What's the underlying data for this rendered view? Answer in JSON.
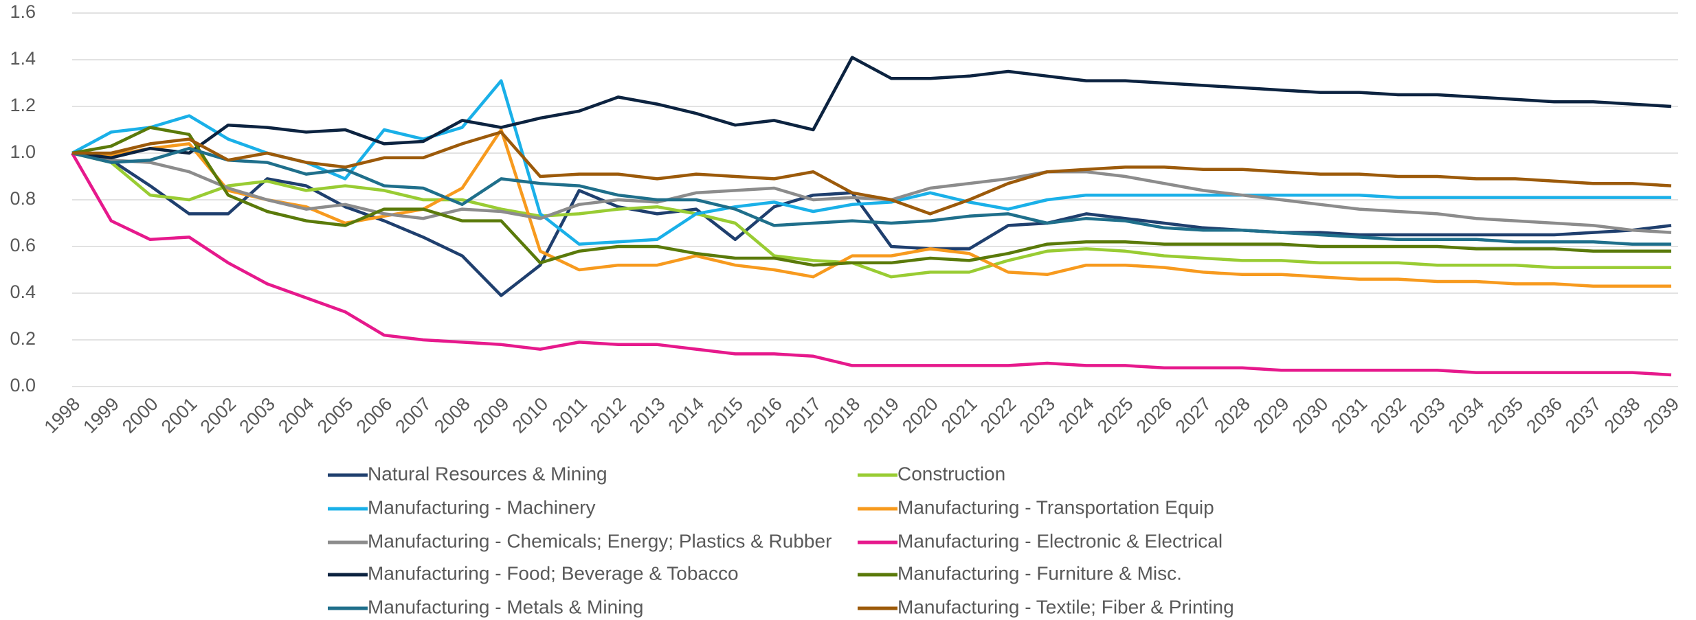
{
  "chart_data": {
    "type": "line",
    "categories": [
      "1998",
      "1999",
      "2000",
      "2001",
      "2002",
      "2003",
      "2004",
      "2005",
      "2006",
      "2007",
      "2008",
      "2009",
      "2010",
      "2011",
      "2012",
      "2013",
      "2014",
      "2015",
      "2016",
      "2017",
      "2018",
      "2019",
      "2020",
      "2021",
      "2022",
      "2023",
      "2024",
      "2025",
      "2026",
      "2027",
      "2028",
      "2029",
      "2030",
      "2031",
      "2032",
      "2033",
      "2034",
      "2035",
      "2036",
      "2037",
      "2038",
      "2039"
    ],
    "series": [
      {
        "name": "Natural Resources & Mining",
        "color": "#1f3f6e",
        "values": [
          1.0,
          0.97,
          0.86,
          0.74,
          0.74,
          0.89,
          0.86,
          0.77,
          0.71,
          0.64,
          0.56,
          0.39,
          0.52,
          0.84,
          0.77,
          0.74,
          0.76,
          0.63,
          0.77,
          0.82,
          0.83,
          0.6,
          0.59,
          0.59,
          0.69,
          0.7,
          0.74,
          0.72,
          0.7,
          0.68,
          0.67,
          0.66,
          0.66,
          0.65,
          0.65,
          0.65,
          0.65,
          0.65,
          0.65,
          0.66,
          0.67,
          0.69
        ]
      },
      {
        "name": "Construction",
        "color": "#99cc33",
        "values": [
          1.0,
          0.96,
          0.82,
          0.8,
          0.86,
          0.88,
          0.84,
          0.86,
          0.84,
          0.8,
          0.8,
          0.76,
          0.73,
          0.74,
          0.76,
          0.77,
          0.74,
          0.7,
          0.56,
          0.54,
          0.53,
          0.47,
          0.49,
          0.49,
          0.54,
          0.58,
          0.59,
          0.58,
          0.56,
          0.55,
          0.54,
          0.54,
          0.53,
          0.53,
          0.53,
          0.52,
          0.52,
          0.52,
          0.51,
          0.51,
          0.51,
          0.51
        ]
      },
      {
        "name": "Manufacturing - Machinery",
        "color": "#1ab0e8",
        "values": [
          1.0,
          1.09,
          1.11,
          1.16,
          1.06,
          1.0,
          0.96,
          0.89,
          1.1,
          1.06,
          1.11,
          1.31,
          0.74,
          0.61,
          0.62,
          0.63,
          0.74,
          0.77,
          0.79,
          0.75,
          0.78,
          0.79,
          0.83,
          0.79,
          0.76,
          0.8,
          0.82,
          0.82,
          0.82,
          0.82,
          0.82,
          0.82,
          0.82,
          0.82,
          0.81,
          0.81,
          0.81,
          0.81,
          0.81,
          0.81,
          0.81,
          0.81
        ]
      },
      {
        "name": "Manufacturing - Transportation Equip",
        "color": "#f79a1e",
        "values": [
          1.0,
          0.99,
          1.02,
          1.04,
          0.84,
          0.8,
          0.77,
          0.7,
          0.73,
          0.76,
          0.85,
          1.1,
          0.58,
          0.5,
          0.52,
          0.52,
          0.56,
          0.52,
          0.5,
          0.47,
          0.56,
          0.56,
          0.59,
          0.57,
          0.49,
          0.48,
          0.52,
          0.52,
          0.51,
          0.49,
          0.48,
          0.48,
          0.47,
          0.46,
          0.46,
          0.45,
          0.45,
          0.44,
          0.44,
          0.43,
          0.43,
          0.43
        ]
      },
      {
        "name": "Manufacturing - Chemicals; Energy; Plastics & Rubber",
        "color": "#8c8c8c",
        "values": [
          1.0,
          0.97,
          0.96,
          0.92,
          0.85,
          0.8,
          0.76,
          0.78,
          0.74,
          0.72,
          0.76,
          0.75,
          0.72,
          0.78,
          0.8,
          0.79,
          0.83,
          0.84,
          0.85,
          0.8,
          0.81,
          0.8,
          0.85,
          0.87,
          0.89,
          0.92,
          0.92,
          0.9,
          0.87,
          0.84,
          0.82,
          0.8,
          0.78,
          0.76,
          0.75,
          0.74,
          0.72,
          0.71,
          0.7,
          0.69,
          0.67,
          0.66
        ]
      },
      {
        "name": "Manufacturing - Electronic & Electrical",
        "color": "#e6198c",
        "values": [
          1.0,
          0.71,
          0.63,
          0.64,
          0.53,
          0.44,
          0.38,
          0.32,
          0.22,
          0.2,
          0.19,
          0.18,
          0.16,
          0.19,
          0.18,
          0.18,
          0.16,
          0.14,
          0.14,
          0.13,
          0.09,
          0.09,
          0.09,
          0.09,
          0.09,
          0.1,
          0.09,
          0.09,
          0.08,
          0.08,
          0.08,
          0.07,
          0.07,
          0.07,
          0.07,
          0.07,
          0.06,
          0.06,
          0.06,
          0.06,
          0.06,
          0.05
        ]
      },
      {
        "name": "Manufacturing - Food; Beverage & Tobacco",
        "color": "#0c2340",
        "values": [
          1.0,
          0.98,
          1.02,
          1.0,
          1.12,
          1.11,
          1.09,
          1.1,
          1.04,
          1.05,
          1.14,
          1.11,
          1.15,
          1.18,
          1.24,
          1.21,
          1.17,
          1.12,
          1.14,
          1.1,
          1.41,
          1.32,
          1.32,
          1.33,
          1.35,
          1.33,
          1.31,
          1.31,
          1.3,
          1.29,
          1.28,
          1.27,
          1.26,
          1.26,
          1.25,
          1.25,
          1.24,
          1.23,
          1.22,
          1.22,
          1.21,
          1.2
        ]
      },
      {
        "name": "Manufacturing - Furniture & Misc.",
        "color": "#5a7a0a",
        "values": [
          1.0,
          1.03,
          1.11,
          1.08,
          0.82,
          0.75,
          0.71,
          0.69,
          0.76,
          0.76,
          0.71,
          0.71,
          0.53,
          0.58,
          0.6,
          0.6,
          0.57,
          0.55,
          0.55,
          0.52,
          0.53,
          0.53,
          0.55,
          0.54,
          0.57,
          0.61,
          0.62,
          0.62,
          0.61,
          0.61,
          0.61,
          0.61,
          0.6,
          0.6,
          0.6,
          0.6,
          0.59,
          0.59,
          0.59,
          0.58,
          0.58,
          0.58
        ]
      },
      {
        "name": "Manufacturing - Metals & Mining",
        "color": "#1f6f8b",
        "values": [
          1.0,
          0.96,
          0.97,
          1.02,
          0.97,
          0.96,
          0.91,
          0.93,
          0.86,
          0.85,
          0.78,
          0.89,
          0.87,
          0.86,
          0.82,
          0.8,
          0.8,
          0.76,
          0.69,
          0.7,
          0.71,
          0.7,
          0.71,
          0.73,
          0.74,
          0.7,
          0.72,
          0.71,
          0.68,
          0.67,
          0.67,
          0.66,
          0.65,
          0.64,
          0.63,
          0.63,
          0.63,
          0.62,
          0.62,
          0.62,
          0.61,
          0.61
        ]
      },
      {
        "name": "Manufacturing - Textile; Fiber & Printing",
        "color": "#9c5a0a",
        "values": [
          1.0,
          1.0,
          1.04,
          1.06,
          0.97,
          1.0,
          0.96,
          0.94,
          0.98,
          0.98,
          1.04,
          1.09,
          0.9,
          0.91,
          0.91,
          0.89,
          0.91,
          0.9,
          0.89,
          0.92,
          0.83,
          0.8,
          0.74,
          0.8,
          0.87,
          0.92,
          0.93,
          0.94,
          0.94,
          0.93,
          0.93,
          0.92,
          0.91,
          0.91,
          0.9,
          0.9,
          0.89,
          0.89,
          0.88,
          0.87,
          0.87,
          0.86
        ]
      }
    ],
    "ylim": [
      0,
      1.6
    ],
    "yticks": [
      {
        "value": 0,
        "label": "0.0"
      },
      0.2,
      0.4,
      0.6,
      0.8,
      {
        "value": 1,
        "label": "1.0"
      },
      1.2,
      1.4,
      1.6
    ],
    "grid": true,
    "legend": "bottom"
  }
}
